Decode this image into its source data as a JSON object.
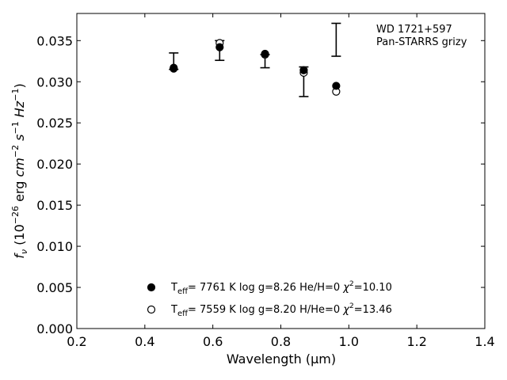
{
  "chart_data": {
    "type": "scatter",
    "xlabel": "Wavelength (μm)",
    "ylabel_parts": {
      "f": "f",
      "nu": "ν",
      "open": " (10",
      "exp1": "−26",
      "erg": " erg ",
      "cm": "cm",
      "exp2": "−2",
      "s": " s",
      "exp3": "−1",
      "hz": " Hz",
      "exp4": "−1",
      "close": ")"
    },
    "xlim": [
      0.2,
      1.4
    ],
    "ylim": [
      0.0,
      0.0383
    ],
    "x_ticks": [
      "0.2",
      "0.4",
      "0.6",
      "0.8",
      "1.0",
      "1.2",
      "1.4"
    ],
    "y_ticks": [
      "0.000",
      "0.005",
      "0.010",
      "0.015",
      "0.020",
      "0.025",
      "0.030",
      "0.035"
    ],
    "annotations": [
      "WD 1721+597",
      "Pan-STARRS grizy"
    ],
    "observed": {
      "x": [
        0.4849,
        0.6201,
        0.7535,
        0.8674,
        0.9628
      ],
      "y": [
        0.0325,
        0.0338,
        0.0325,
        0.03,
        0.0351
      ],
      "yerr": [
        0.001,
        0.0012,
        0.0008,
        0.0018,
        0.002
      ]
    },
    "series": [
      {
        "name": "He/H=0 model",
        "marker": "filled",
        "x": [
          0.4849,
          0.6201,
          0.7535,
          0.8674,
          0.9628
        ],
        "y": [
          0.0317,
          0.0342,
          0.0334,
          0.0314,
          0.0295
        ]
      },
      {
        "name": "H/He=0 model",
        "marker": "open",
        "x": [
          0.4849,
          0.6201,
          0.7535,
          0.8674,
          0.9628
        ],
        "y": [
          0.0316,
          0.0347,
          0.0333,
          0.0311,
          0.0288
        ]
      }
    ],
    "legend": {
      "placement": "lower-center",
      "entries": [
        {
          "marker": "filled",
          "t": "T",
          "eff": "eff",
          "rest": "=  7761 K  log g=8.26  He/H=0  ",
          "chi": "χ",
          "two": "2",
          "val": "=10.10"
        },
        {
          "marker": "open",
          "t": "T",
          "eff": "eff",
          "rest": "=  7559 K  log g=8.20  H/He=0  ",
          "chi": "χ",
          "two": "2",
          "val": "=13.46"
        }
      ]
    },
    "colors": {
      "marker": "#000000",
      "axes": "#000000"
    }
  }
}
